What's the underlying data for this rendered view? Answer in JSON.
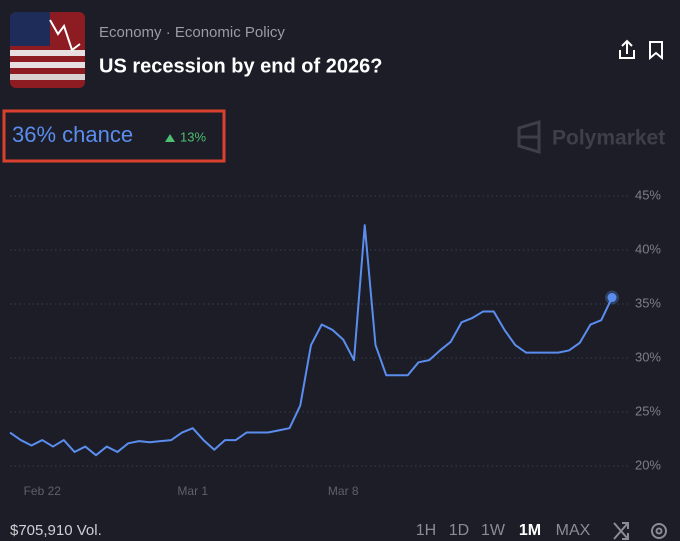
{
  "header": {
    "category": "Economy · Economic Policy",
    "title": "US recession by end of 2026?"
  },
  "probability": {
    "text": "36% chance",
    "change": "13%"
  },
  "watermark": "Polymarket",
  "footer": {
    "volume": "$705,910 Vol.",
    "ranges": [
      "1H",
      "1D",
      "1W",
      "1M",
      "MAX"
    ],
    "active_range": "1M"
  },
  "chart_data": {
    "type": "line",
    "categories": [
      null,
      null,
      null,
      "Feb 22",
      null,
      null,
      null,
      null,
      null,
      null,
      null,
      null,
      null,
      null,
      null,
      null,
      null,
      "Mar 1",
      null,
      null,
      null,
      null,
      null,
      null,
      null,
      null,
      null,
      null,
      null,
      null,
      null,
      "Mar 8",
      null,
      null,
      null,
      null,
      null,
      null,
      null,
      null,
      null,
      null,
      null,
      null,
      null,
      null,
      null,
      null,
      null,
      null,
      null,
      null,
      null,
      null,
      null,
      null,
      null
    ],
    "series": [
      {
        "color": "#5b8def",
        "values": [
          23.1,
          22.4,
          21.9,
          22.4,
          21.8,
          22.4,
          21.3,
          21.8,
          21.0,
          21.8,
          21.3,
          22.1,
          22.3,
          22.2,
          22.3,
          22.4,
          23.1,
          23.5,
          22.4,
          21.5,
          22.4,
          22.4,
          23.1,
          23.1,
          23.1,
          23.3,
          23.5,
          25.6,
          31.2,
          33.1,
          32.6,
          31.7,
          29.8,
          42.3,
          31.2,
          28.4,
          28.4,
          28.4,
          29.6,
          29.8,
          30.7,
          31.5,
          33.3,
          33.7,
          34.3,
          34.3,
          32.6,
          31.2,
          30.5,
          30.5,
          30.5,
          30.5,
          30.7,
          31.4,
          33.1,
          33.5,
          35.6
        ]
      }
    ],
    "ylim": [
      19,
      46
    ],
    "yticks": [
      {
        "value": 20,
        "label": "20%"
      },
      {
        "value": 25,
        "label": "25%"
      },
      {
        "value": 30,
        "label": "30%"
      },
      {
        "value": 35,
        "label": "35%"
      },
      {
        "value": 40,
        "label": "40%"
      },
      {
        "value": 45,
        "label": "45%"
      }
    ],
    "grid": true
  }
}
